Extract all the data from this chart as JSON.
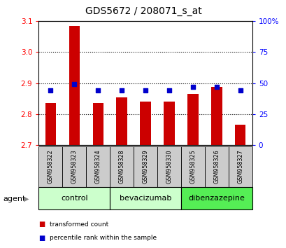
{
  "title": "GDS5672 / 208071_s_at",
  "samples": [
    "GSM958322",
    "GSM958323",
    "GSM958324",
    "GSM958328",
    "GSM958329",
    "GSM958330",
    "GSM958325",
    "GSM958326",
    "GSM958327"
  ],
  "transformed_counts": [
    2.835,
    3.085,
    2.835,
    2.855,
    2.84,
    2.84,
    2.865,
    2.888,
    2.765
  ],
  "percentile_ranks": [
    44,
    49,
    44,
    44,
    44,
    44,
    47,
    47,
    44
  ],
  "bar_bottom": 2.7,
  "ylim_left": [
    2.7,
    3.1
  ],
  "ylim_right": [
    0,
    100
  ],
  "yticks_left": [
    2.7,
    2.8,
    2.9,
    3.0,
    3.1
  ],
  "yticks_right": [
    0,
    25,
    50,
    75,
    100
  ],
  "ytick_labels_right": [
    "0",
    "25",
    "50",
    "75",
    "100%"
  ],
  "bar_color": "#cc0000",
  "dot_color": "#0000cc",
  "groups": [
    {
      "label": "control",
      "indices": [
        0,
        1,
        2
      ],
      "color": "#ccffcc"
    },
    {
      "label": "bevacizumab",
      "indices": [
        3,
        4,
        5
      ],
      "color": "#ccffcc"
    },
    {
      "label": "dibenzazepine",
      "indices": [
        6,
        7,
        8
      ],
      "color": "#55ee55"
    }
  ],
  "agent_label": "agent",
  "legend_items": [
    {
      "label": "transformed count",
      "color": "#cc0000"
    },
    {
      "label": "percentile rank within the sample",
      "color": "#0000cc"
    }
  ],
  "grid_color": "black",
  "tick_label_area_color": "#cccccc",
  "title_fontsize": 10,
  "bar_width": 0.45
}
